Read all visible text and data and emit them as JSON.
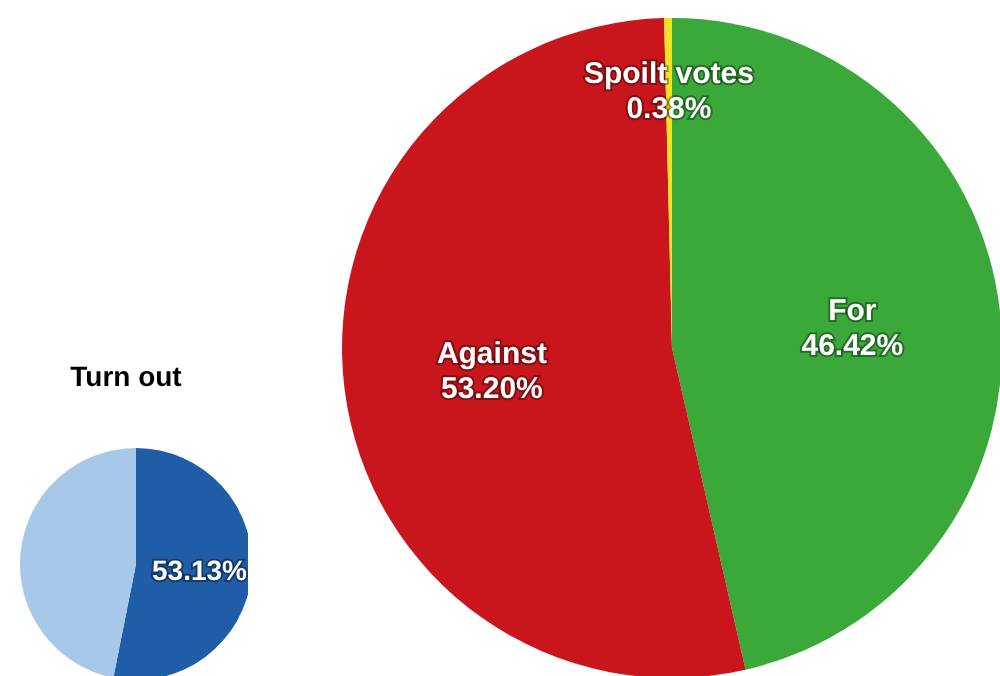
{
  "chart_data": [
    {
      "type": "pie",
      "title": "Turn out",
      "categories": [
        null,
        null
      ],
      "values": [
        53.13,
        46.87
      ],
      "colors": [
        "#1f5ea6",
        "#a8c8ea"
      ],
      "value_labels": [
        "53.13%",
        null
      ]
    },
    {
      "type": "pie",
      "categories": [
        "For",
        "Against",
        "Spoilt votes"
      ],
      "values": [
        46.42,
        53.2,
        0.38
      ],
      "colors": [
        "#3aa93a",
        "#c8161c",
        "#ece524"
      ],
      "value_labels": [
        "46.42%",
        "53.20%",
        "0.38%"
      ]
    }
  ]
}
